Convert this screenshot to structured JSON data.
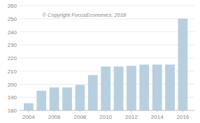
{
  "chart_data": {
    "type": "bar",
    "x": [
      2004,
      2005,
      2006,
      2007,
      2008,
      2009,
      2010,
      2011,
      2012,
      2013,
      2014,
      2015,
      2016
    ],
    "values": [
      185.5,
      195.0,
      197.5,
      197.5,
      199.5,
      207.0,
      213.5,
      213.5,
      214.0,
      215.0,
      215.0,
      215.0,
      250.0
    ],
    "color": "#b8cfe0",
    "xlim": [
      2003.3,
      2016.9
    ],
    "xticks": [
      2004,
      2006,
      2008,
      2010,
      2012,
      2014,
      2016
    ],
    "ylim": [
      180,
      260
    ],
    "yticks": [
      180,
      190,
      200,
      210,
      220,
      230,
      240,
      250,
      260
    ],
    "grid": true,
    "annotations": [
      "© Copyright FocusEconomics. 2018"
    ]
  }
}
